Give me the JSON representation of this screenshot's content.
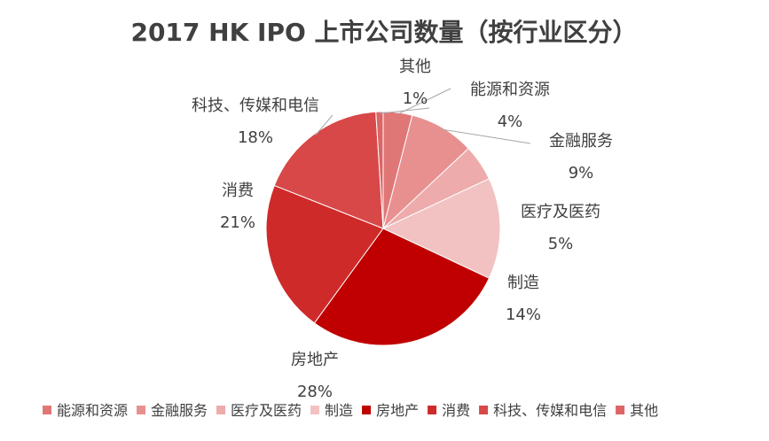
{
  "chart_data": {
    "type": "pie",
    "title": "2017 HK IPO 上市公司数量（按行业区分）",
    "slices": [
      {
        "label": "能源和资源",
        "value": 4,
        "value_label": "4%",
        "color": "#e07777"
      },
      {
        "label": "金融服务",
        "value": 9,
        "value_label": "9%",
        "color": "#e89090"
      },
      {
        "label": "医疗及医药",
        "value": 5,
        "value_label": "5%",
        "color": "#edabab"
      },
      {
        "label": "制造",
        "value": 14,
        "value_label": "14%",
        "color": "#f2c2c2"
      },
      {
        "label": "房地产",
        "value": 28,
        "value_label": "28%",
        "color": "#c00000"
      },
      {
        "label": "消费",
        "value": 21,
        "value_label": "21%",
        "color": "#cf2a2a"
      },
      {
        "label": "科技、传媒和电信",
        "value": 18,
        "value_label": "18%",
        "color": "#d84848"
      },
      {
        "label": "其他",
        "value": 1,
        "value_label": "1%",
        "color": "#dd6565"
      }
    ],
    "legend": "bottom"
  }
}
